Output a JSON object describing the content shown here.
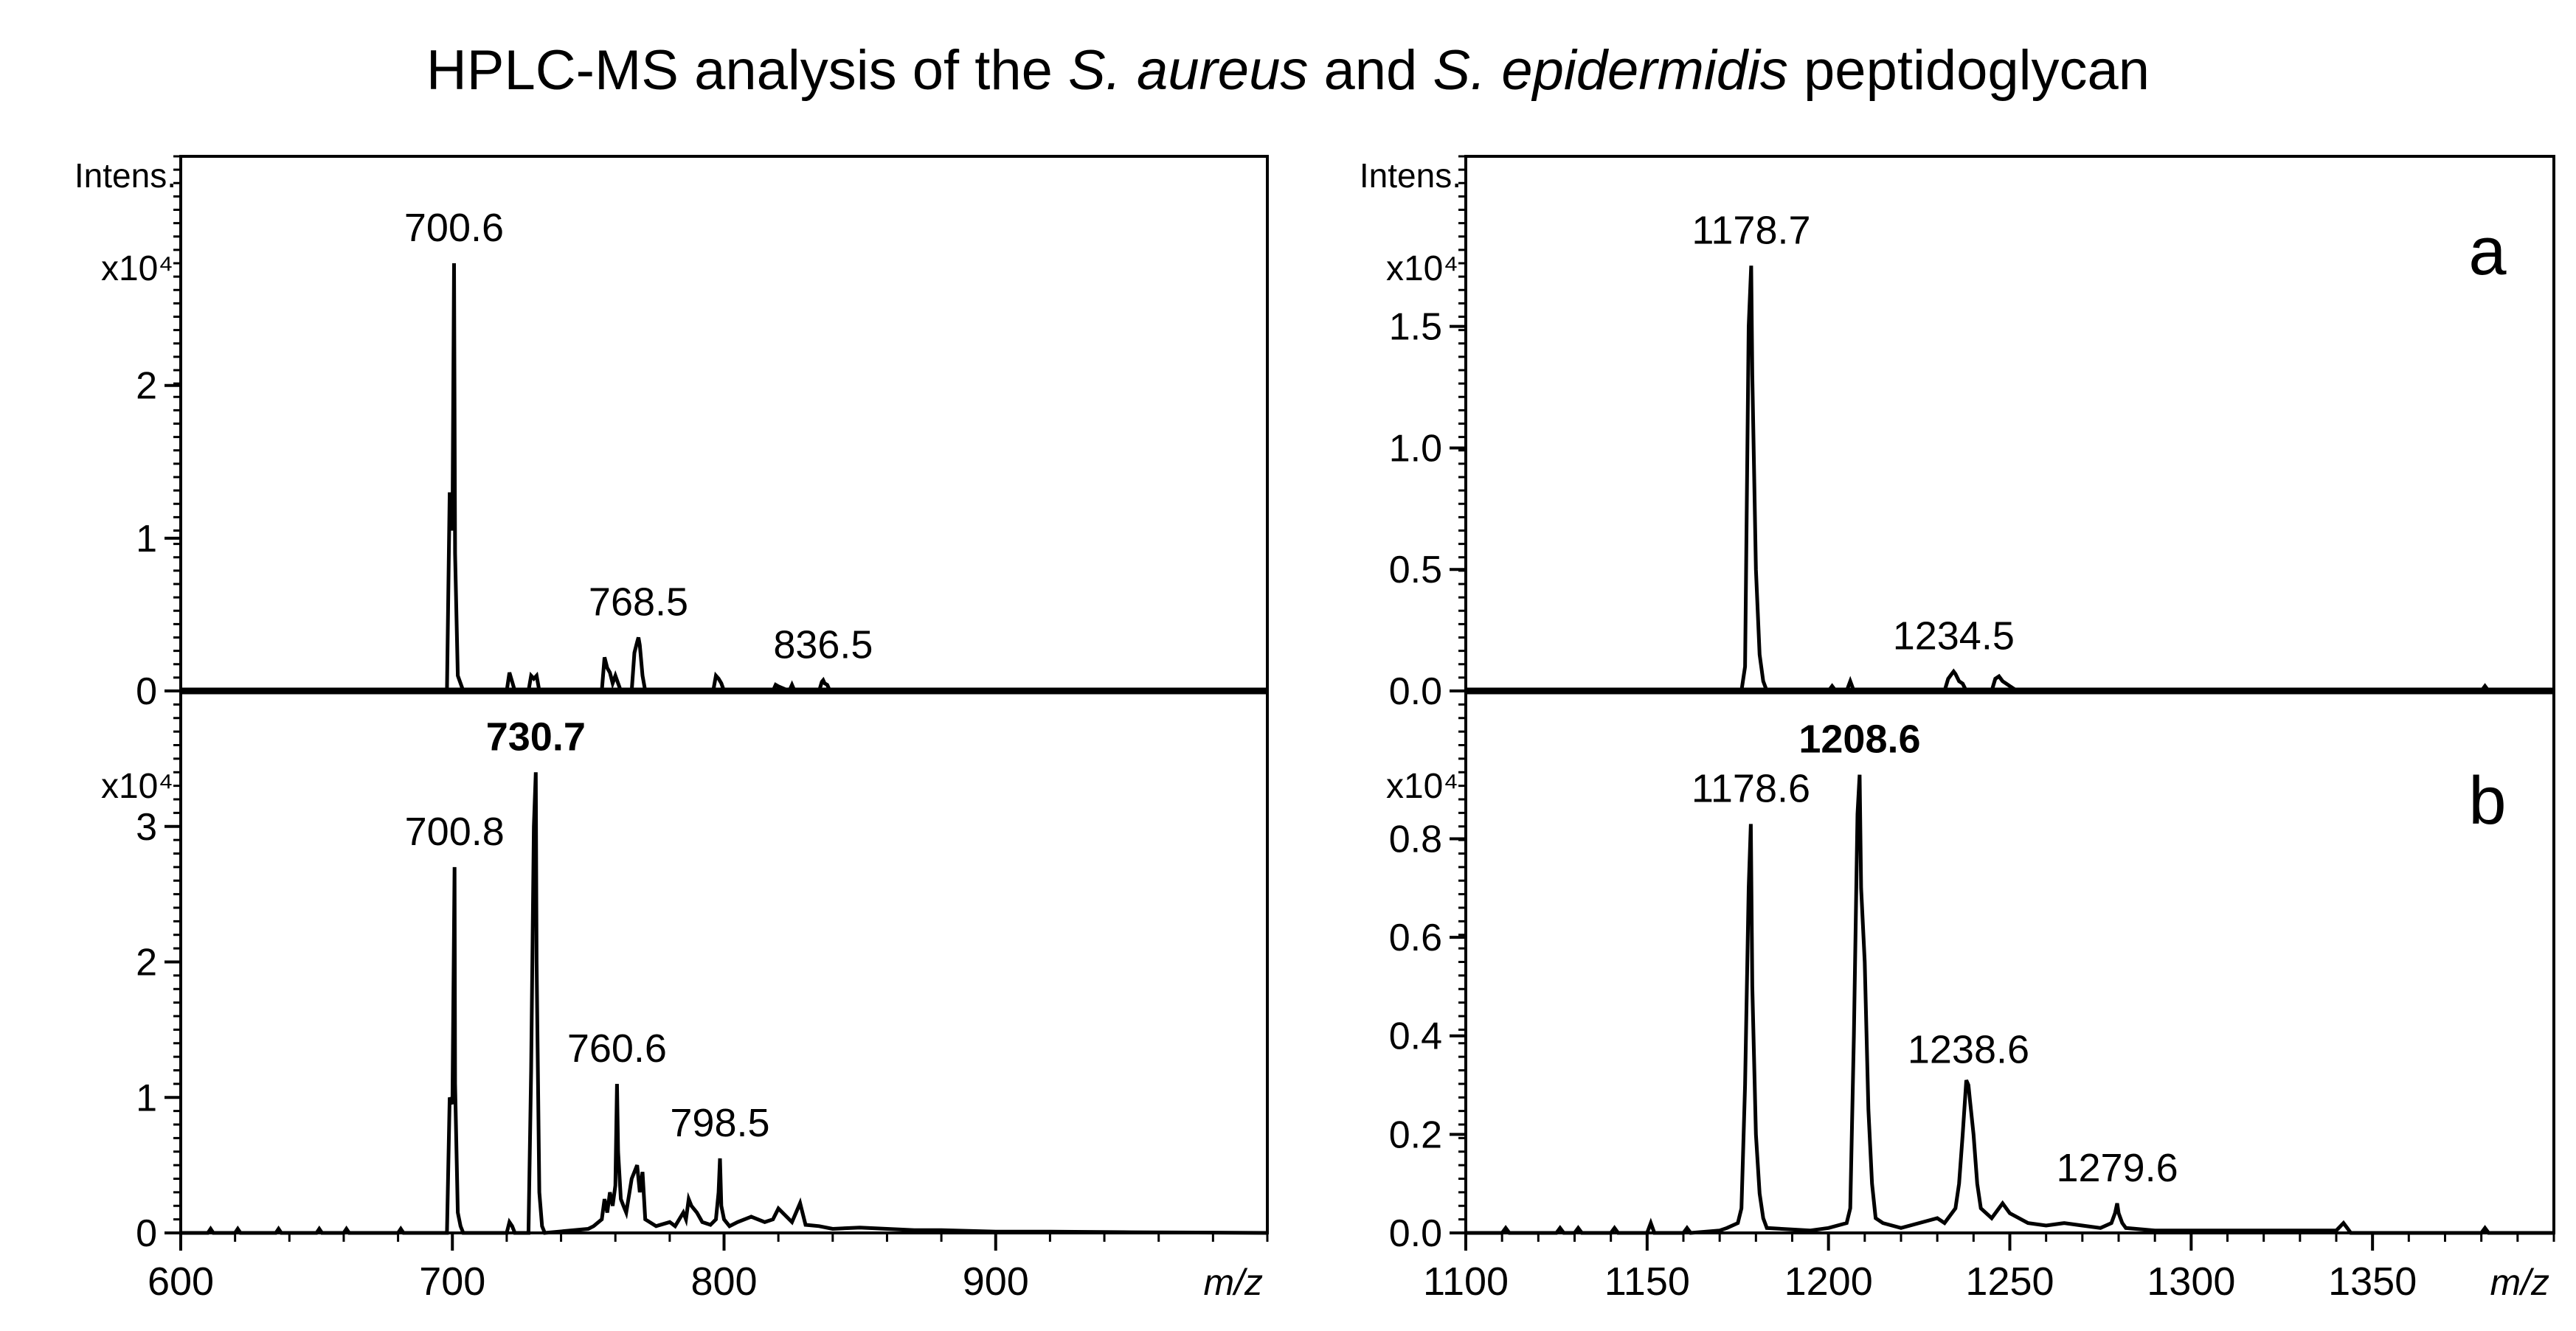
{
  "title_parts": [
    {
      "text": "HPLC-MS analysis of the ",
      "italic": false
    },
    {
      "text": "S. aureus",
      "italic": true
    },
    {
      "text": " and ",
      "italic": false
    },
    {
      "text": "S. epidermidis",
      "italic": true
    },
    {
      "text": " peptidoglycan",
      "italic": false
    }
  ],
  "chart_data": [
    {
      "type": "line",
      "panel": "left-top",
      "ylabel": "Intens.",
      "y_multiplier": "x10⁴",
      "xlabel": "",
      "xlim": [
        600,
        1000
      ],
      "ylim": [
        0,
        3.5
      ],
      "yticks": [
        0,
        1,
        2
      ],
      "ytick_labels": [
        "0",
        "1",
        "2"
      ],
      "x": [
        600,
        698,
        699,
        700,
        700.6,
        701,
        702,
        703,
        704,
        720,
        721,
        722,
        723,
        728,
        729,
        730,
        731,
        732,
        755,
        756,
        757,
        758,
        759,
        760,
        762,
        766,
        767,
        768,
        768.5,
        769,
        770,
        771,
        796,
        797,
        798,
        799,
        800,
        818,
        819,
        820,
        824,
        825,
        826,
        835,
        836,
        836.5,
        837,
        838,
        839,
        1000
      ],
      "y": [
        0,
        0,
        1.3,
        1.05,
        2.8,
        0.9,
        0.1,
        0.05,
        0,
        0,
        0.12,
        0.06,
        0,
        0,
        0.1,
        0.08,
        0.1,
        0,
        0,
        0.22,
        0.15,
        0.12,
        0.05,
        0.1,
        0,
        0,
        0.25,
        0.32,
        0.35,
        0.3,
        0.1,
        0,
        0,
        0.1,
        0.08,
        0.05,
        0,
        0,
        0.04,
        0.03,
        0,
        0.04,
        0,
        0,
        0.06,
        0.07,
        0.05,
        0.04,
        0,
        0
      ],
      "annotations": [
        {
          "text": "700.6",
          "x": 700.6,
          "bold": false
        },
        {
          "text": "768.5",
          "x": 768.5,
          "bold": false
        },
        {
          "text": "836.5",
          "x": 836.5,
          "bold": false
        }
      ]
    },
    {
      "type": "line",
      "panel": "left-bottom",
      "ylabel": "",
      "y_multiplier": "x10⁴",
      "xlabel": "m/z",
      "xlim": [
        600,
        1000
      ],
      "ylim": [
        0,
        4.0
      ],
      "xticks": [
        600,
        700,
        800,
        900
      ],
      "xtick_labels": [
        "600",
        "700",
        "800",
        "900"
      ],
      "yticks": [
        0,
        1,
        2,
        3
      ],
      "ytick_labels": [
        "0",
        "1",
        "2",
        "3"
      ],
      "x": [
        600,
        610,
        611,
        612,
        620,
        621,
        622,
        635,
        636,
        637,
        650,
        651,
        652,
        660,
        661,
        662,
        680,
        681,
        682,
        698,
        699,
        700,
        700.8,
        701,
        702,
        703,
        704,
        720,
        721,
        722,
        723,
        728,
        729,
        730,
        730.7,
        731,
        732,
        733,
        734,
        750,
        752,
        755,
        756,
        757,
        758,
        759,
        760,
        760.6,
        761,
        762,
        763,
        764,
        766,
        768,
        769,
        770,
        771,
        775,
        780,
        782,
        785,
        786,
        787,
        788,
        790,
        792,
        795,
        797,
        798,
        798.5,
        799,
        800,
        802,
        805,
        810,
        815,
        818,
        820,
        825,
        828,
        830,
        835,
        840,
        850,
        860,
        870,
        880,
        900,
        920,
        950,
        1000
      ],
      "y": [
        0,
        0,
        0.03,
        0,
        0,
        0.03,
        0,
        0,
        0.03,
        0,
        0,
        0.03,
        0,
        0,
        0.03,
        0,
        0,
        0.03,
        0,
        0,
        1.0,
        0.95,
        2.7,
        1.1,
        0.15,
        0.05,
        0,
        0,
        0.08,
        0.05,
        0,
        0,
        1.2,
        3.0,
        3.4,
        2.0,
        0.3,
        0.05,
        0,
        0.03,
        0.05,
        0.1,
        0.25,
        0.15,
        0.3,
        0.2,
        0.35,
        1.1,
        0.6,
        0.25,
        0.2,
        0.15,
        0.4,
        0.5,
        0.3,
        0.45,
        0.1,
        0.05,
        0.08,
        0.05,
        0.15,
        0.1,
        0.25,
        0.2,
        0.15,
        0.08,
        0.06,
        0.1,
        0.3,
        0.55,
        0.2,
        0.1,
        0.05,
        0.08,
        0.12,
        0.08,
        0.1,
        0.18,
        0.08,
        0.22,
        0.06,
        0.05,
        0.03,
        0.04,
        0.03,
        0.02,
        0.02,
        0.01,
        0.01,
        0.005,
        0
      ],
      "annotations": [
        {
          "text": "700.8",
          "x": 700.8,
          "bold": false
        },
        {
          "text": "730.7",
          "x": 730.7,
          "bold": true
        },
        {
          "text": "760.6",
          "x": 760.6,
          "bold": false
        },
        {
          "text": "798.5",
          "x": 798.5,
          "bold": false
        }
      ]
    },
    {
      "type": "line",
      "panel": "right-top",
      "ylabel": "Intens.",
      "y_multiplier": "x10⁴",
      "xlabel": "",
      "panel_label": "a",
      "xlim": [
        1100,
        1400
      ],
      "ylim": [
        0,
        2.2
      ],
      "yticks": [
        0,
        0.5,
        1.0,
        1.5
      ],
      "ytick_labels": [
        "0.0",
        "0.5",
        "1.0",
        "1.5"
      ],
      "x": [
        1100,
        1176,
        1177,
        1178,
        1178.7,
        1179,
        1180,
        1181,
        1182,
        1183,
        1200,
        1201,
        1202,
        1205,
        1206,
        1207,
        1232,
        1233,
        1234,
        1234.5,
        1235,
        1236,
        1237,
        1238,
        1245,
        1246,
        1247,
        1248,
        1249,
        1250,
        1252,
        1380,
        1381,
        1382,
        1400
      ],
      "y": [
        0,
        0,
        0.1,
        1.5,
        1.75,
        1.3,
        0.5,
        0.15,
        0.04,
        0,
        0,
        0.02,
        0,
        0,
        0.04,
        0,
        0,
        0.05,
        0.07,
        0.08,
        0.07,
        0.04,
        0.03,
        0,
        0,
        0.05,
        0.06,
        0.04,
        0.03,
        0.02,
        0,
        0,
        0.02,
        0,
        0
      ],
      "annotations": [
        {
          "text": "1178.7",
          "x": 1178.7,
          "bold": false
        },
        {
          "text": "1234.5",
          "x": 1234.5,
          "bold": false
        }
      ]
    },
    {
      "type": "line",
      "panel": "right-bottom",
      "ylabel": "",
      "y_multiplier": "x10⁴",
      "xlabel": "m/z",
      "panel_label": "b",
      "xlim": [
        1100,
        1400
      ],
      "ylim": [
        0,
        1.1
      ],
      "xticks": [
        1100,
        1150,
        1200,
        1250,
        1300,
        1350
      ],
      "xtick_labels": [
        "1100",
        "1150",
        "1200",
        "1250",
        "1300",
        "1350"
      ],
      "yticks": [
        0,
        0.2,
        0.4,
        0.6,
        0.8
      ],
      "ytick_labels": [
        "0.0",
        "0.2",
        "0.4",
        "0.6",
        "0.8"
      ],
      "x": [
        1100,
        1110,
        1111,
        1112,
        1125,
        1126,
        1127,
        1130,
        1131,
        1132,
        1140,
        1141,
        1142,
        1150,
        1151,
        1152,
        1160,
        1161,
        1162,
        1170,
        1172,
        1175,
        1176,
        1177,
        1178,
        1178.6,
        1179,
        1180,
        1181,
        1182,
        1183,
        1195,
        1200,
        1205,
        1206,
        1207,
        1208,
        1208.6,
        1209,
        1210,
        1211,
        1212,
        1213,
        1215,
        1220,
        1225,
        1230,
        1232,
        1235,
        1236,
        1237,
        1238,
        1238.6,
        1239,
        1240,
        1241,
        1242,
        1245,
        1248,
        1250,
        1255,
        1260,
        1265,
        1270,
        1275,
        1278,
        1279,
        1279.6,
        1280,
        1281,
        1282,
        1290,
        1300,
        1320,
        1340,
        1342,
        1343,
        1344,
        1380,
        1381,
        1382,
        1400
      ],
      "y": [
        0,
        0,
        0.01,
        0,
        0,
        0.01,
        0,
        0,
        0.01,
        0,
        0,
        0.01,
        0,
        0,
        0.02,
        0,
        0,
        0.01,
        0,
        0.005,
        0.01,
        0.02,
        0.05,
        0.3,
        0.7,
        0.83,
        0.5,
        0.2,
        0.08,
        0.03,
        0.01,
        0.005,
        0.01,
        0.02,
        0.05,
        0.4,
        0.85,
        0.93,
        0.7,
        0.55,
        0.25,
        0.1,
        0.03,
        0.02,
        0.01,
        0.02,
        0.03,
        0.02,
        0.05,
        0.1,
        0.2,
        0.31,
        0.3,
        0.27,
        0.2,
        0.1,
        0.05,
        0.03,
        0.06,
        0.04,
        0.02,
        0.015,
        0.02,
        0.015,
        0.01,
        0.02,
        0.04,
        0.06,
        0.04,
        0.02,
        0.01,
        0.005,
        0.005,
        0.005,
        0.005,
        0.02,
        0.01,
        0,
        0,
        0.01,
        0,
        0
      ],
      "annotations": [
        {
          "text": "1178.6",
          "x": 1178.6,
          "bold": false
        },
        {
          "text": "1208.6",
          "x": 1208.6,
          "bold": true
        },
        {
          "text": "1238.6",
          "x": 1238.6,
          "bold": false
        },
        {
          "text": "1279.6",
          "x": 1279.6,
          "bold": false
        }
      ]
    }
  ]
}
